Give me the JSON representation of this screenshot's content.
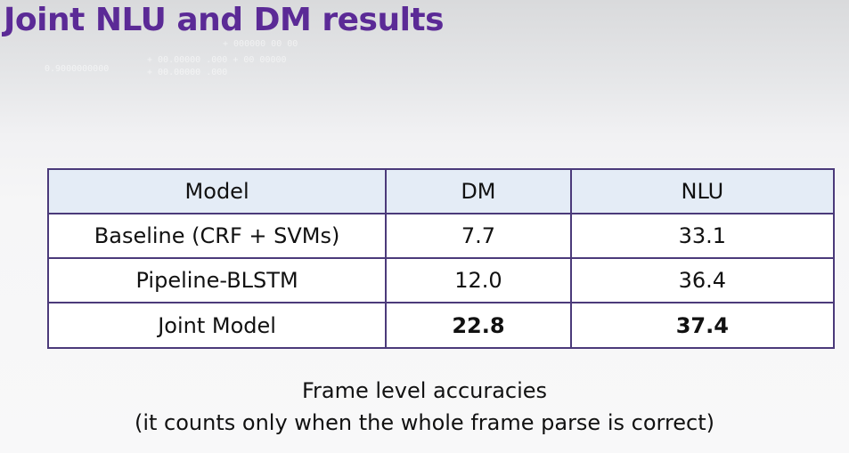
{
  "slide": {
    "title": "Joint NLU and DM results"
  },
  "table": {
    "headers": [
      "Model",
      "DM",
      "NLU"
    ],
    "rows": [
      {
        "model": "Baseline (CRF + SVMs)",
        "dm": "7.7",
        "nlu": "33.1",
        "bold": false
      },
      {
        "model": "Pipeline-BLSTM",
        "dm": "12.0",
        "nlu": "36.4",
        "bold": false
      },
      {
        "model": "Joint Model",
        "dm": "22.8",
        "nlu": "37.4",
        "bold": true
      }
    ]
  },
  "caption": {
    "line1": "Frame level accuracies",
    "line2": "(it counts only when the whole frame parse is correct)"
  },
  "colors": {
    "title": "#5b2a96",
    "header_fill": "#e4ecf6",
    "border": "#4b3a7a"
  }
}
